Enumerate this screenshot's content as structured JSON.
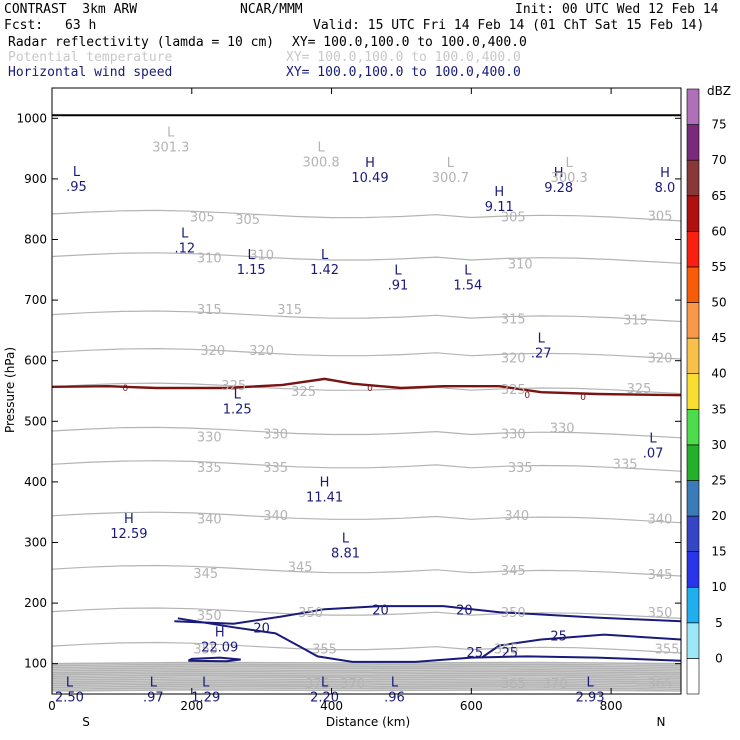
{
  "header": {
    "model": "CONTRAST  3km ARW",
    "source": "NCAR/MMM",
    "init": "Init: 00 UTC Wed 12 Feb 14",
    "fcst_label": "Fcst:",
    "fcst_value": "63 h",
    "valid": "Valid: 15 UTC Fri 14 Feb 14 (01 ChT Sat 15 Feb 14)",
    "fields": [
      {
        "name": "Radar reflectivity (lamda = 10 cm)",
        "xy": "XY= 100.0,100.0 to 100.0,400.0"
      },
      {
        "name": "Potential temperature",
        "xy": "XY= 100.0,100.0 to 100.0,400.0"
      },
      {
        "name": "Horizontal wind speed",
        "xy": "XY= 100.0,100.0 to 100.0,400.0"
      }
    ]
  },
  "chart_data": {
    "type": "cross-section",
    "title": "Radar reflectivity, potential temperature, horizontal wind speed",
    "xlabel": "Distance (km)",
    "ylabel": "Pressure (hPa)",
    "xlim": [
      0,
      900
    ],
    "ylim": [
      1050,
      50
    ],
    "x_ticks": [
      "0",
      "200",
      "400",
      "600",
      "800"
    ],
    "x_tick_values": [
      0,
      200,
      400,
      600,
      800
    ],
    "y_ticks": [
      "100",
      "200",
      "300",
      "400",
      "500",
      "600",
      "700",
      "800",
      "900",
      "1000"
    ],
    "y_tick_values": [
      100,
      200,
      300,
      400,
      500,
      600,
      700,
      800,
      900,
      1000
    ],
    "x_end_labels": {
      "left": "S",
      "right": "N"
    },
    "colorbar": {
      "unit": "dBZ",
      "levels": [
        "0",
        "5",
        "10",
        "15",
        "20",
        "25",
        "30",
        "35",
        "40",
        "45",
        "50",
        "55",
        "60",
        "65",
        "70",
        "75"
      ],
      "colors": [
        "#ffffff",
        "#9de8f8",
        "#1faeee",
        "#2a34e8",
        "#3545c5",
        "#3a7bb8",
        "#23b02a",
        "#4cdc4c",
        "#f8de30",
        "#f8c048",
        "#f89848",
        "#f85c08",
        "#f82010",
        "#b01010",
        "#883838",
        "#7a2a7a",
        "#b070b8"
      ]
    },
    "theta_labels": [
      {
        "text": "375",
        "x": 380,
        "p": 68
      },
      {
        "text": "370",
        "x": 430,
        "p": 68
      },
      {
        "text": "365",
        "x": 660,
        "p": 68
      },
      {
        "text": "370",
        "x": 720,
        "p": 68
      },
      {
        "text": "365",
        "x": 870,
        "p": 68
      },
      {
        "text": "355",
        "x": 220,
        "p": 125
      },
      {
        "text": "355",
        "x": 390,
        "p": 125
      },
      {
        "text": "355",
        "x": 650,
        "p": 125
      },
      {
        "text": "355",
        "x": 880,
        "p": 125
      },
      {
        "text": "350",
        "x": 225,
        "p": 180
      },
      {
        "text": "350",
        "x": 370,
        "p": 185
      },
      {
        "text": "350",
        "x": 660,
        "p": 185
      },
      {
        "text": "350",
        "x": 870,
        "p": 185
      },
      {
        "text": "345",
        "x": 220,
        "p": 250
      },
      {
        "text": "345",
        "x": 355,
        "p": 260
      },
      {
        "text": "345",
        "x": 660,
        "p": 255
      },
      {
        "text": "345",
        "x": 870,
        "p": 248
      },
      {
        "text": "340",
        "x": 225,
        "p": 340
      },
      {
        "text": "340",
        "x": 320,
        "p": 345
      },
      {
        "text": "340",
        "x": 665,
        "p": 345
      },
      {
        "text": "340",
        "x": 870,
        "p": 340
      },
      {
        "text": "335",
        "x": 225,
        "p": 425
      },
      {
        "text": "335",
        "x": 320,
        "p": 425
      },
      {
        "text": "335",
        "x": 670,
        "p": 425
      },
      {
        "text": "335",
        "x": 820,
        "p": 430
      },
      {
        "text": "330",
        "x": 225,
        "p": 475
      },
      {
        "text": "330",
        "x": 320,
        "p": 480
      },
      {
        "text": "330",
        "x": 660,
        "p": 480
      },
      {
        "text": "330",
        "x": 730,
        "p": 490
      },
      {
        "text": "325",
        "x": 260,
        "p": 560
      },
      {
        "text": "325",
        "x": 360,
        "p": 550
      },
      {
        "text": "325",
        "x": 660,
        "p": 553
      },
      {
        "text": "325",
        "x": 840,
        "p": 555
      },
      {
        "text": "320",
        "x": 230,
        "p": 618
      },
      {
        "text": "320",
        "x": 300,
        "p": 618
      },
      {
        "text": "320",
        "x": 660,
        "p": 605
      },
      {
        "text": "320",
        "x": 870,
        "p": 605
      },
      {
        "text": "315",
        "x": 225,
        "p": 685
      },
      {
        "text": "315",
        "x": 340,
        "p": 685
      },
      {
        "text": "315",
        "x": 660,
        "p": 670
      },
      {
        "text": "315",
        "x": 835,
        "p": 668
      },
      {
        "text": "310",
        "x": 225,
        "p": 770
      },
      {
        "text": "310",
        "x": 300,
        "p": 775
      },
      {
        "text": "310",
        "x": 670,
        "p": 760
      },
      {
        "text": "305",
        "x": 215,
        "p": 838
      },
      {
        "text": "305",
        "x": 280,
        "p": 834
      },
      {
        "text": "305",
        "x": 660,
        "p": 838
      },
      {
        "text": "305",
        "x": 870,
        "p": 840
      }
    ],
    "wind_labels": [
      {
        "text": "20",
        "x": 300,
        "p": 158
      },
      {
        "text": "20",
        "x": 470,
        "p": 188
      },
      {
        "text": "20",
        "x": 590,
        "p": 188
      },
      {
        "text": "25",
        "x": 605,
        "p": 118
      },
      {
        "text": "25",
        "x": 655,
        "p": 118
      },
      {
        "text": "25",
        "x": 725,
        "p": 145
      },
      {
        "text": "0",
        "x": 105,
        "p": 557
      },
      {
        "text": "0",
        "x": 455,
        "p": 557
      },
      {
        "text": "0",
        "x": 680,
        "p": 545
      },
      {
        "text": "0",
        "x": 760,
        "p": 542
      }
    ],
    "extrema": [
      {
        "kind": "L",
        "value": "2.50",
        "x": 25,
        "p": 62,
        "color": "navy"
      },
      {
        "kind": "L",
        "value": ".97",
        "x": 145,
        "p": 62,
        "color": "navy"
      },
      {
        "kind": "L",
        "value": "1.29",
        "x": 220,
        "p": 62,
        "color": "navy"
      },
      {
        "kind": "L",
        "value": "2.20",
        "x": 390,
        "p": 62,
        "color": "navy"
      },
      {
        "kind": "L",
        "value": ".96",
        "x": 490,
        "p": 62,
        "color": "navy"
      },
      {
        "kind": "L",
        "value": "2.93",
        "x": 770,
        "p": 62,
        "color": "navy"
      },
      {
        "kind": "H",
        "value": "22.09",
        "x": 240,
        "p": 145,
        "color": "navy"
      },
      {
        "kind": "H",
        "value": "12.59",
        "x": 110,
        "p": 332,
        "color": "navy"
      },
      {
        "kind": "L",
        "value": "8.81",
        "x": 420,
        "p": 300,
        "color": "navy"
      },
      {
        "kind": "H",
        "value": "11.41",
        "x": 390,
        "p": 392,
        "color": "navy"
      },
      {
        "kind": "L",
        "value": ".07",
        "x": 860,
        "p": 465,
        "color": "navy"
      },
      {
        "kind": "L",
        "value": "1.25",
        "x": 265,
        "p": 538,
        "color": "navy"
      },
      {
        "kind": "L",
        "value": ".27",
        "x": 700,
        "p": 630,
        "color": "navy"
      },
      {
        "kind": "L",
        "value": ".91",
        "x": 495,
        "p": 742,
        "color": "navy"
      },
      {
        "kind": "L",
        "value": "1.54",
        "x": 595,
        "p": 742,
        "color": "navy"
      },
      {
        "kind": "L",
        "value": "1.15",
        "x": 285,
        "p": 768,
        "color": "navy"
      },
      {
        "kind": "L",
        "value": "1.42",
        "x": 390,
        "p": 768,
        "color": "navy"
      },
      {
        "kind": "L",
        "value": ".12",
        "x": 190,
        "p": 803,
        "color": "navy"
      },
      {
        "kind": "H",
        "value": "9.11",
        "x": 640,
        "p": 872,
        "color": "navy"
      },
      {
        "kind": "L",
        "value": ".95",
        "x": 35,
        "p": 905,
        "color": "navy"
      },
      {
        "kind": "H",
        "value": "9.28",
        "x": 725,
        "p": 903,
        "color": "navy"
      },
      {
        "kind": "H",
        "value": "8.0",
        "x": 885,
        "p": 903,
        "color": "navy"
      },
      {
        "kind": "H",
        "value": "10.49",
        "x": 455,
        "p": 920,
        "color": "navy"
      },
      {
        "kind": "L",
        "value": "300.7",
        "x": 570,
        "p": 920,
        "color": "gray"
      },
      {
        "kind": "L",
        "value": "300.3",
        "x": 740,
        "p": 920,
        "color": "gray"
      },
      {
        "kind": "L",
        "value": "300.8",
        "x": 385,
        "p": 945,
        "color": "gray"
      },
      {
        "kind": "L",
        "value": "301.3",
        "x": 170,
        "p": 970,
        "color": "gray"
      }
    ],
    "ground_pressure": 1005
  }
}
